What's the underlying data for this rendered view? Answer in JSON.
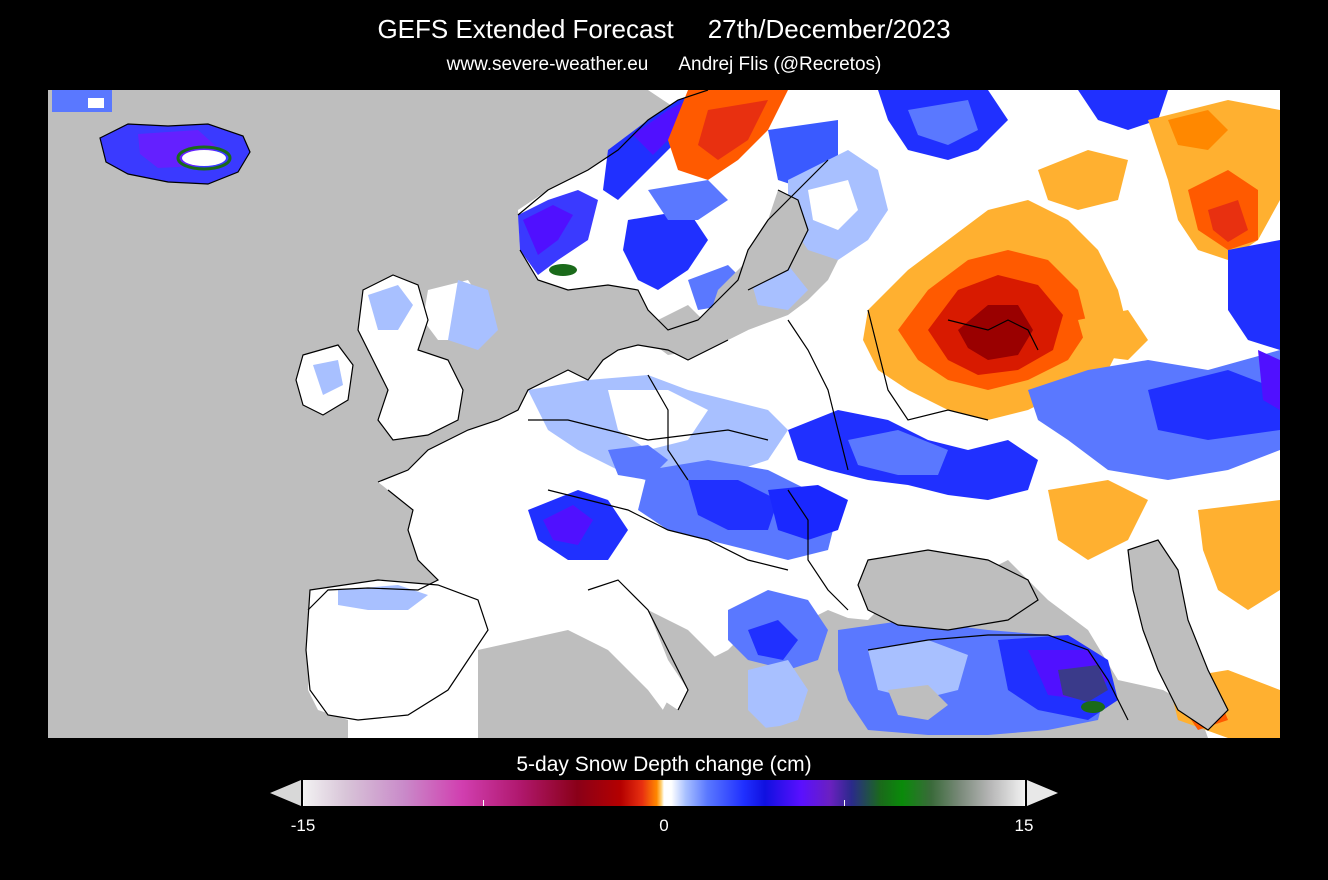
{
  "header": {
    "title": "GEFS Extended Forecast",
    "date": "27th/December/2023",
    "website": "www.severe-weather.eu",
    "author": "Andrej Flis (@Recretos)"
  },
  "legend": {
    "title": "5-day Snow Depth change (cm)",
    "units": "cm",
    "min_label": "-15",
    "mid_label": "0",
    "max_label": "15",
    "range": [
      -15,
      15
    ]
  },
  "map": {
    "region": "Europe",
    "background_color": "#bebebe",
    "no_change_color": "#ffffff",
    "loss_colors": [
      "#ffb030",
      "#ff5a00",
      "#d81a00",
      "#9a0000"
    ],
    "gain_colors": [
      "#a8c0ff",
      "#5a78ff",
      "#1a28ff",
      "#5010ff",
      "#1a6a1a"
    ]
  }
}
